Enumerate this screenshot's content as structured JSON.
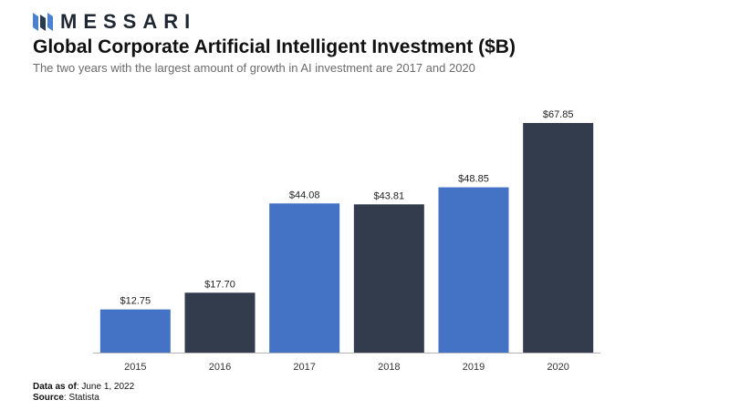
{
  "brand": {
    "name": "MESSARI",
    "logo_icon": "messari-logo-icon",
    "colors": {
      "light": "#4a82cf",
      "dark": "#2b3a4f"
    }
  },
  "colors": {
    "bar_blue": "#4472c4",
    "bar_dark": "#323c4c",
    "axis": "#b5b5b5"
  },
  "footer": {
    "data_as_of_label": "Data as of",
    "data_as_of_value": ": June 1, 2022",
    "source_label": "Source",
    "source_value": ": Statista"
  },
  "chart_data": {
    "type": "bar",
    "title": "Global Corporate Artificial Intelligent Investment ($B)",
    "subtitle": "The two years with the largest amount of growth in AI investment are 2017 and 2020",
    "categories": [
      "2015",
      "2016",
      "2017",
      "2018",
      "2019",
      "2020"
    ],
    "values": [
      12.75,
      17.7,
      44.08,
      43.81,
      48.85,
      67.85
    ],
    "data_labels": [
      "$12.75",
      "$17.70",
      "$44.08",
      "$43.81",
      "$48.85",
      "$67.85"
    ],
    "bar_colors": [
      "#4472c4",
      "#323c4c",
      "#4472c4",
      "#323c4c",
      "#4472c4",
      "#323c4c"
    ],
    "xlabel": "",
    "ylabel": "",
    "ylim": [
      0,
      67.85
    ],
    "grid": false,
    "legend": "none"
  }
}
